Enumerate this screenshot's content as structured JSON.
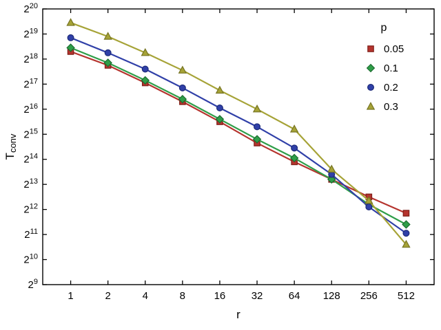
{
  "figure": {
    "background": "#ffffff",
    "axis_color": "#000000",
    "tick_color": "#000000"
  },
  "chart_data": {
    "type": "line",
    "title": "",
    "xlabel": "r",
    "ylabel_base": "T",
    "ylabel_sub": "conv",
    "x_scale": "log2",
    "y_scale": "log2",
    "x_ticks": [
      1,
      2,
      4,
      8,
      16,
      32,
      64,
      128,
      256,
      512
    ],
    "y_tick_base": "2",
    "y_tick_exponents": [
      9,
      10,
      11,
      12,
      13,
      14,
      15,
      16,
      17,
      18,
      19,
      20
    ],
    "ylim_exp": [
      9,
      20
    ],
    "xlim_log2": [
      -0.75,
      9.75
    ],
    "grid": false,
    "legend": {
      "title": "p",
      "position": "upper-right"
    },
    "x": [
      1,
      2,
      4,
      8,
      16,
      32,
      64,
      128,
      256,
      512
    ],
    "series": [
      {
        "name": "0.05",
        "marker": "square",
        "color": "#b5342e",
        "edge": "#7e1f18",
        "log2_values": [
          18.3,
          17.75,
          17.05,
          16.3,
          15.5,
          14.65,
          13.9,
          13.2,
          12.5,
          11.85
        ]
      },
      {
        "name": "0.1",
        "marker": "diamond",
        "color": "#2f9e49",
        "edge": "#1c6b2f",
        "log2_values": [
          18.45,
          17.85,
          17.15,
          16.4,
          15.6,
          14.8,
          14.05,
          13.2,
          12.2,
          11.4
        ]
      },
      {
        "name": "0.2",
        "marker": "circle",
        "color": "#3040a8",
        "edge": "#1c2a78",
        "log2_values": [
          18.85,
          18.25,
          17.6,
          16.85,
          16.05,
          15.3,
          14.45,
          13.4,
          12.1,
          11.05
        ]
      },
      {
        "name": "0.3",
        "marker": "triangle",
        "color": "#a6a337",
        "edge": "#767423",
        "log2_values": [
          19.45,
          18.9,
          18.25,
          17.55,
          16.75,
          16.0,
          15.2,
          13.6,
          12.35,
          10.6
        ]
      }
    ]
  }
}
